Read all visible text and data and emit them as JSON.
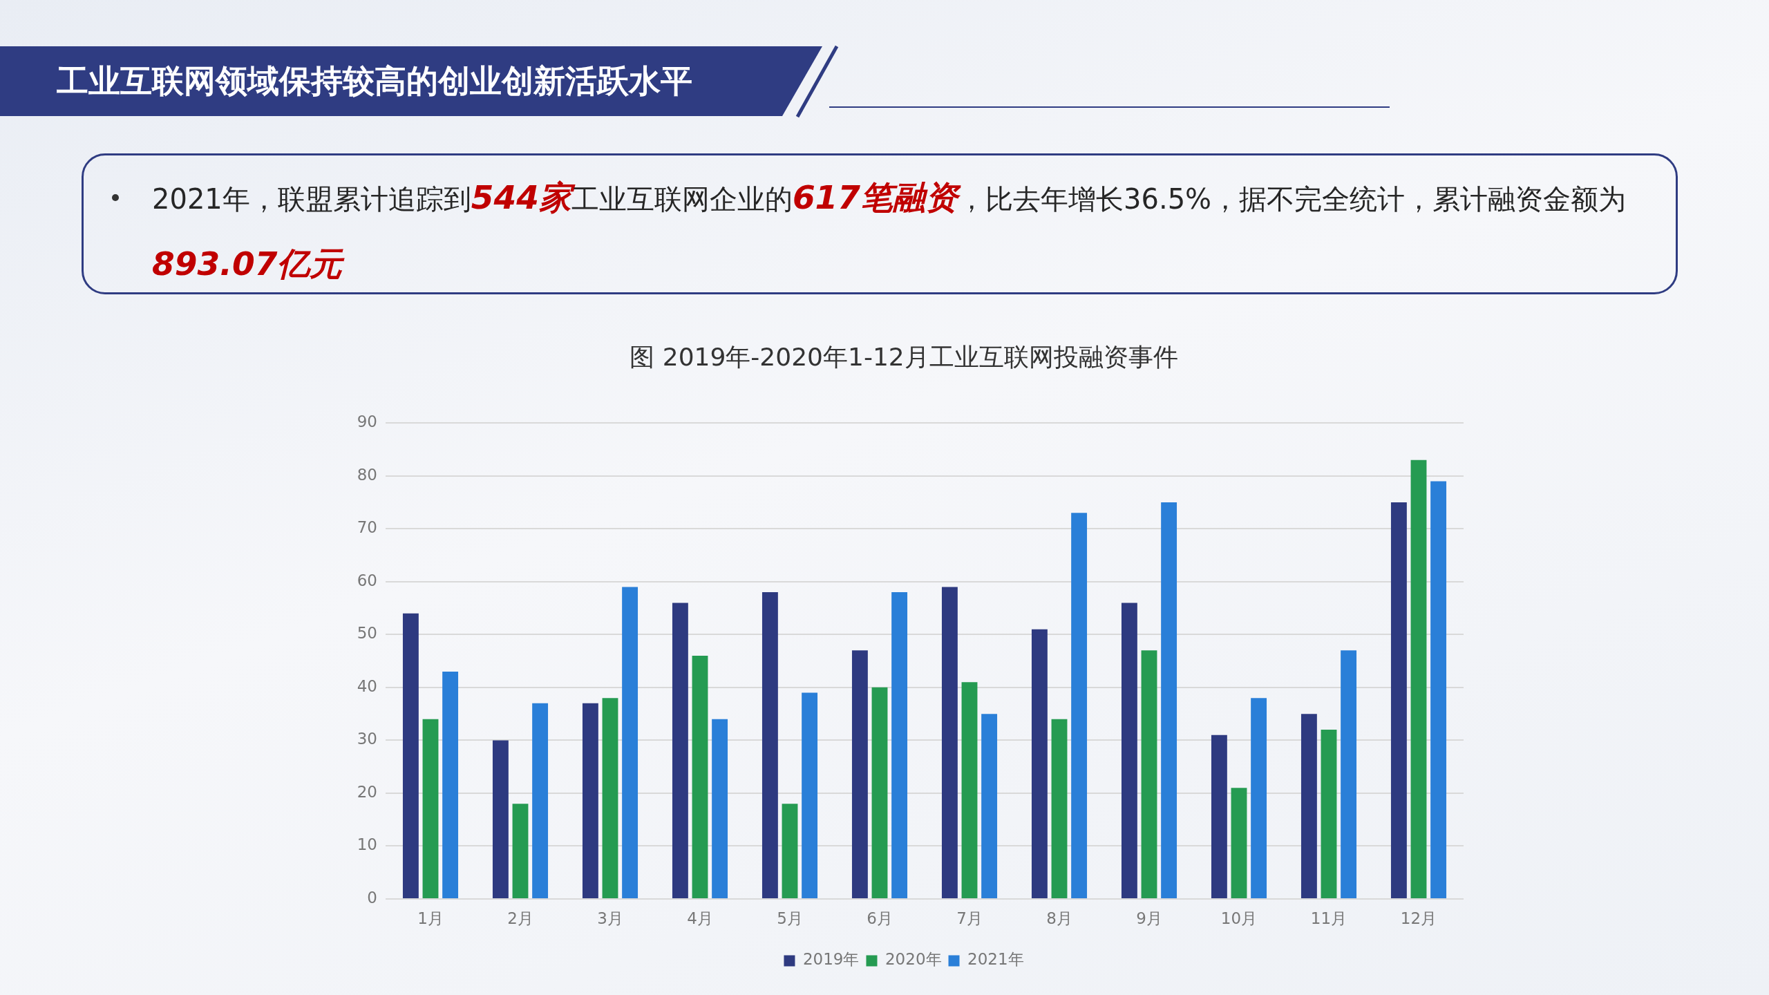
{
  "chart_data": {
    "type": "bar",
    "title": "工业互联网领域保持较高的创业创新活跃水平",
    "subtitle": "图 2019年-2020年1-12月工业互联网投融资事件",
    "annotations": [
      "2021年，联盟累计追踪到",
      "544家",
      "工业互联网企业的",
      "617笔融资",
      "，比去年增长36.5%，据不完全统计，累计融资金额为",
      "893.07亿元"
    ],
    "categories": [
      "1月",
      "2月",
      "3月",
      "4月",
      "5月",
      "6月",
      "7月",
      "8月",
      "9月",
      "10月",
      "11月",
      "12月"
    ],
    "series": [
      {
        "name": "2019年",
        "color": "#2e3a80",
        "values": [
          54,
          30,
          37,
          56,
          58,
          47,
          59,
          51,
          56,
          31,
          35,
          75
        ]
      },
      {
        "name": "2020年",
        "color": "#259b52",
        "values": [
          34,
          18,
          38,
          46,
          18,
          40,
          41,
          34,
          47,
          21,
          32,
          83
        ]
      },
      {
        "name": "2021年",
        "color": "#2a7fd8",
        "values": [
          43,
          37,
          59,
          34,
          39,
          58,
          35,
          73,
          75,
          38,
          47,
          79
        ]
      }
    ],
    "ylim": [
      0,
      90
    ],
    "yticks": [
      0,
      10,
      20,
      30,
      40,
      50,
      60,
      70,
      80,
      90
    ],
    "grid": "y",
    "legend": "bottom"
  }
}
